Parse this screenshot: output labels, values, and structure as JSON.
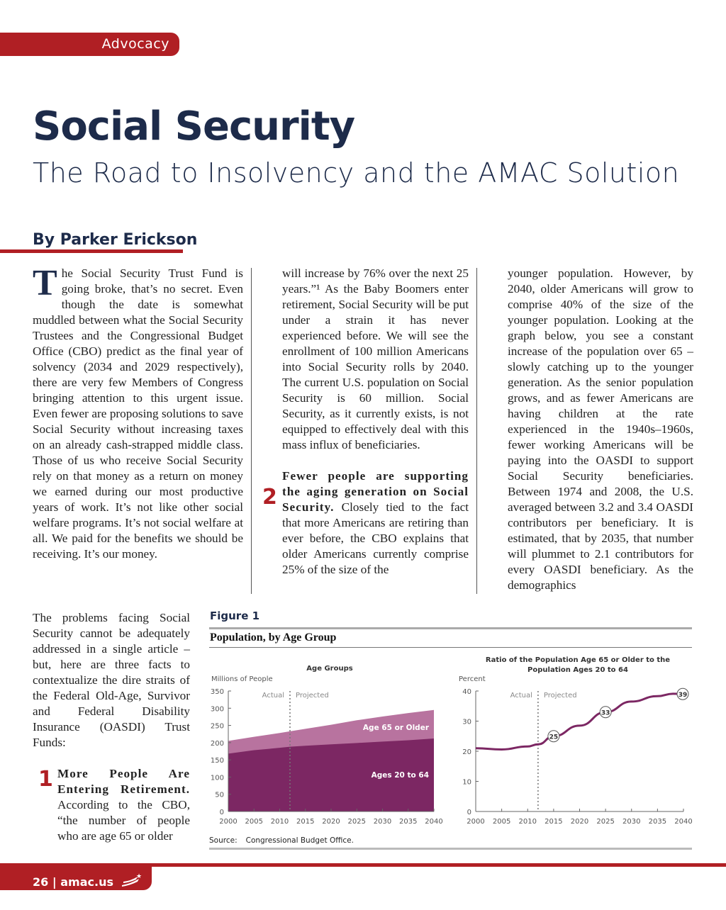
{
  "section": "Advocacy",
  "title": "Social Security",
  "subtitle": "The Road to Insolvency and the AMAC Solution",
  "byline": "By Parker Erickson",
  "body": {
    "drop_cap": "T",
    "p1": "he Social Security Trust Fund is going broke, that’s no secret. Even though the date is somewhat muddled between what the Social Security Trustees and the Congressional Budget Office (CBO) predict as the final year of solvency (2034 and 2029 respectively), there are very few Members of Congress bringing attention to this urgent issue. Even fewer are proposing solutions to save Social Security without increasing taxes on an already cash-strapped middle class. Those of us who receive Social Security rely on that money as a return on money we earned during our most productive years of work. It’s not like other social welfare programs. It’s not social welfare at all. We paid for the benefits we should be receiving. It’s our money.",
    "p2": "The problems facing Social Security cannot be adequately addressed in a single article – but, here are three facts to contextualize the dire straits of the Federal Old-Age, Survivor and Federal Disability Insurance (OASDI) Trust Funds:",
    "point1_num": "1",
    "point1_head": "More People Are Entering Retirement.",
    "point1_text": " According to the CBO, “the number of people who are age 65 or older",
    "c2_p1": "will increase by 76% over the next 25 years.”¹ As the Baby Boomers enter retirement, Social Security will be put under a strain it has never experienced before. We will see the enrollment of 100 million Americans into Social Security rolls by 2040.  The current U.S. population on Social Security is 60 million. Social Security, as it currently exists, is not equipped to effectively deal with this mass influx of beneficiaries.",
    "point2_num": "2",
    "point2_head": "Fewer people are supporting the aging generation on Social Security.",
    "point2_text": " Closely tied to the fact that more Americans are retiring than ever before, the CBO explains that older Americans currently comprise 25% of the size of the",
    "c3_p1": "younger population. However, by 2040, older Americans will grow to comprise 40% of the size of the younger population. Looking at the graph below, you see a constant increase of the population over 65 – slowly catching up to the younger generation. As the senior population grows, and as fewer Americans are having children at the rate experienced in the 1940s–1960s, fewer working Americans will be paying into the OASDI to support Social Security beneficiaries. Between 1974 and 2008, the U.S. averaged between 3.2 and 3.4 OASDI contributors per beneficiary. It is estimated, that by 2035, that number will plummet to 2.1 contributors for every OASDI beneficiary. As the demographics"
  },
  "figure": {
    "label": "Figure 1",
    "title": "Population, by Age Group",
    "source_label": "Source:",
    "source": "Congressional Budget Office."
  },
  "colors": {
    "brand_red": "#b01f24",
    "navy": "#1d2b4a",
    "dark_purple": "#7c2763",
    "light_purple": "#b8739f"
  },
  "chart_data": [
    {
      "type": "area",
      "title": "Age Groups",
      "ylabel": "Millions of People",
      "ylim": [
        0,
        350
      ],
      "yticks": [
        0,
        50,
        100,
        150,
        200,
        250,
        300,
        350
      ],
      "x": [
        2000,
        2005,
        2010,
        2012,
        2015,
        2020,
        2025,
        2030,
        2035,
        2040
      ],
      "xticks": [
        2000,
        2005,
        2010,
        2015,
        2020,
        2025,
        2030,
        2035,
        2040
      ],
      "stacked_totals": true,
      "series": [
        {
          "name": "Ages 20 to 64",
          "values": [
            168,
            178,
            185,
            188,
            191,
            195,
            199,
            203,
            207,
            212
          ]
        },
        {
          "name": "Age 65 or Older",
          "cumulative_values": [
            205,
            217,
            228,
            233,
            240,
            252,
            265,
            276,
            286,
            295
          ]
        }
      ],
      "annotations": {
        "actual": "Actual",
        "projected": "Projected",
        "divider_year": 2012
      }
    },
    {
      "type": "line",
      "title": "Ratio of the Population Age 65 or Older to the Population Ages 20 to 64",
      "ylabel": "Percent",
      "ylim": [
        0,
        40
      ],
      "yticks": [
        0,
        10,
        20,
        30,
        40
      ],
      "x": [
        2000,
        2005,
        2010,
        2012,
        2015,
        2020,
        2025,
        2030,
        2035,
        2038,
        2040
      ],
      "xticks": [
        2000,
        2005,
        2010,
        2015,
        2020,
        2025,
        2030,
        2035,
        2040
      ],
      "values": [
        21,
        20.6,
        21.6,
        22.3,
        25,
        28.5,
        33,
        36.5,
        38.3,
        39.1,
        39
      ],
      "data_labels": [
        {
          "x": 2015,
          "y": 25,
          "label": "25"
        },
        {
          "x": 2025,
          "y": 33,
          "label": "33"
        },
        {
          "x": 2040,
          "y": 39,
          "label": "39"
        }
      ],
      "annotations": {
        "actual": "Actual",
        "projected": "Projected",
        "divider_year": 2012
      }
    }
  ],
  "footer": {
    "page": "26",
    "site": "amac.us"
  }
}
